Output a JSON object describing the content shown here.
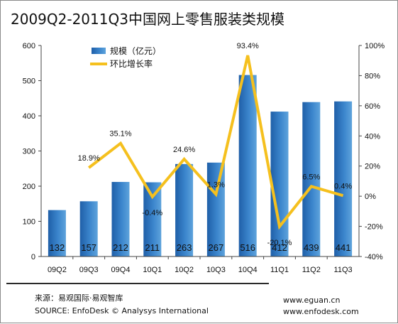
{
  "title": "2009Q2-2011Q3中国网上零售服装类规模",
  "chart_data": {
    "type": "bar",
    "categories": [
      "09Q2",
      "09Q3",
      "09Q4",
      "10Q1",
      "10Q2",
      "10Q3",
      "10Q4",
      "11Q1",
      "11Q2",
      "11Q3"
    ],
    "series": [
      {
        "name": "规模（亿元）",
        "type": "bar",
        "axis": "left",
        "values": [
          132,
          157,
          212,
          211,
          263,
          267,
          516,
          412,
          439,
          441
        ],
        "labels": [
          "132",
          "157",
          "212",
          "211",
          "263",
          "267",
          "516",
          "412",
          "439",
          "441"
        ]
      },
      {
        "name": "环比增长率",
        "type": "line",
        "axis": "right",
        "values": [
          null,
          18.9,
          35.1,
          -0.4,
          24.6,
          1.3,
          93.4,
          -20.1,
          6.5,
          0.4
        ],
        "labels": [
          "",
          "18.9%",
          "35.1%",
          "-0.4%",
          "24.6%",
          "1.3%",
          "93.4%",
          "-20.1%",
          "6.5%",
          "0.4%"
        ]
      }
    ],
    "y_left": {
      "min": 0,
      "max": 600,
      "ticks": [
        "0",
        "100",
        "200",
        "300",
        "400",
        "500",
        "600"
      ]
    },
    "y_right": {
      "min": -40,
      "max": 100,
      "ticks": [
        "-40%",
        "-20%",
        "0%",
        "20%",
        "40%",
        "60%",
        "80%",
        "100%"
      ]
    },
    "legend_position": "top-left",
    "grid": false,
    "colors": {
      "bar_dark": "#1f5fa8",
      "bar_light": "#5ea3dc",
      "line": "#f5c01e"
    }
  },
  "footer": {
    "source_cn": "来源：易观国际·易观智库",
    "source_en": "SOURCE: EnfoDesk © Analysys International",
    "site1": "www.eguan.cn",
    "site2": "www.enfodesk.com"
  }
}
